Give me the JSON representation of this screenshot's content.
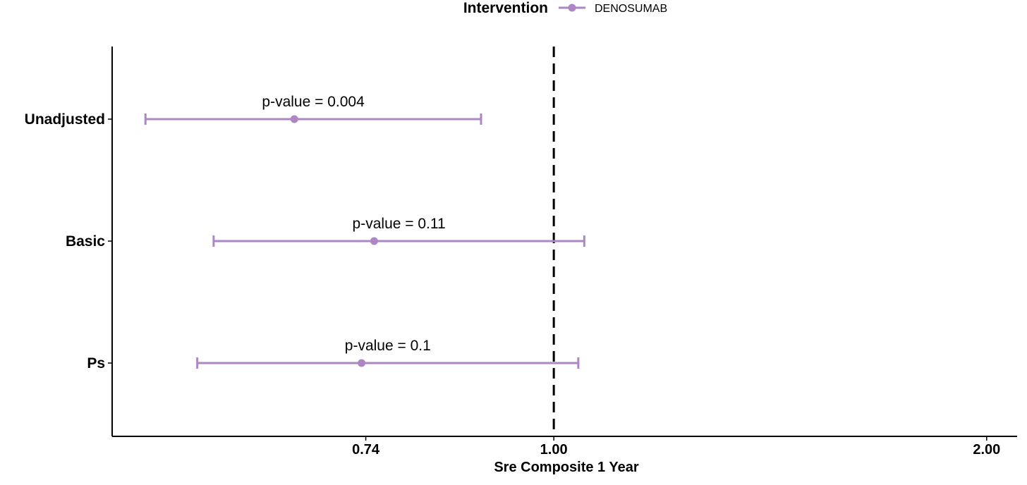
{
  "chart_data": {
    "type": "forest",
    "legend": {
      "title": "Intervention",
      "placement": "top",
      "entries": [
        {
          "name": "DENOSUMAB",
          "color": "#ad86c4"
        }
      ]
    },
    "xlabel": "Sre Composite 1 Year",
    "x_scale": "log",
    "x_ticks": [
      {
        "value": 0.74,
        "label": "0.74"
      },
      {
        "value": 1.0,
        "label": "1.00"
      },
      {
        "value": 2.0,
        "label": "2.00"
      }
    ],
    "xlim": [
      0.493,
      2.1
    ],
    "reference_line": 1.0,
    "categories": [
      "Unadjusted",
      "Basic",
      "Ps"
    ],
    "series": [
      {
        "name": "DENOSUMAB",
        "color": "#ad86c4",
        "points": [
          {
            "label": "Unadjusted",
            "estimate": 0.66,
            "lower": 0.52,
            "upper": 0.89,
            "annotation": "p-value = 0.004"
          },
          {
            "label": "Basic",
            "estimate": 0.75,
            "lower": 0.58,
            "upper": 1.05,
            "annotation": "p-value = 0.11"
          },
          {
            "label": "Ps",
            "estimate": 0.735,
            "lower": 0.565,
            "upper": 1.04,
            "annotation": "p-value = 0.1"
          }
        ]
      }
    ]
  }
}
